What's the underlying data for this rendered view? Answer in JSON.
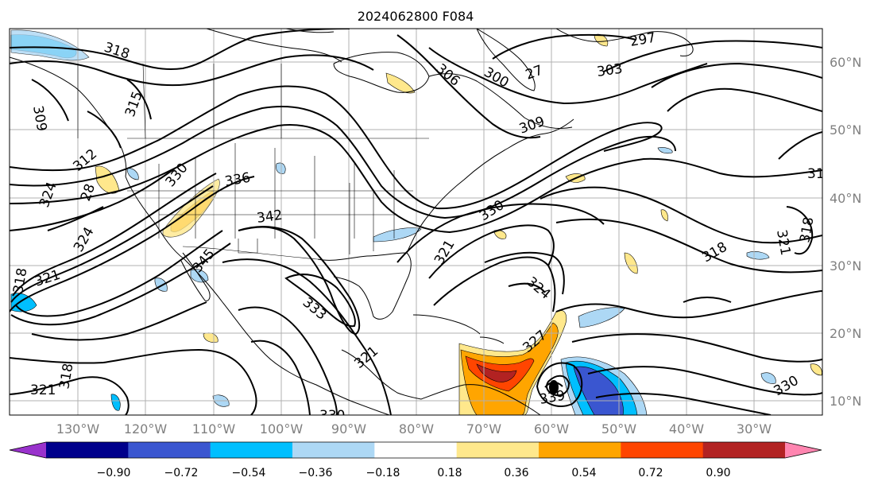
{
  "title": "2024062800 F084",
  "lon_labels": [
    "130°W",
    "120°W",
    "110°W",
    "100°W",
    "90°W",
    "80°W",
    "70°W",
    "60°W",
    "50°W",
    "40°W",
    "30°W"
  ],
  "lat_labels": [
    "60°N",
    "50°N",
    "40°N",
    "30°N",
    "20°N",
    "10°N"
  ],
  "contour_labels": [
    "318",
    "297",
    "303",
    "306",
    "300",
    "309",
    "315",
    "309",
    "312",
    "324",
    "330",
    "336",
    "342",
    "345",
    "321",
    "324",
    "318",
    "333",
    "321",
    "324",
    "330",
    "318",
    "321",
    "318",
    "327",
    "339",
    "330",
    "318",
    "321",
    "27",
    "31",
    "28",
    "330",
    "321"
  ],
  "colorbar": {
    "tick_labels": [
      "−0.90",
      "−0.72",
      "−0.54",
      "−0.36",
      "−0.18",
      "0.18",
      "0.36",
      "0.54",
      "0.72",
      "0.90"
    ],
    "colors": [
      "#9932cc",
      "#00008b",
      "#3a56d0",
      "#00bfff",
      "#add8f5",
      "#ffffff",
      "#ffe88c",
      "#ffa500",
      "#ff4500",
      "#b22222",
      "#ff85b0"
    ]
  },
  "colors": {
    "land_line": "#000000",
    "grid": "#b0b0b0",
    "positive_shades": [
      "#ffe88c",
      "#ffa500",
      "#ff4500",
      "#b22222"
    ],
    "negative_shades": [
      "#add8f5",
      "#00bfff",
      "#3a56d0",
      "#00008b"
    ]
  }
}
